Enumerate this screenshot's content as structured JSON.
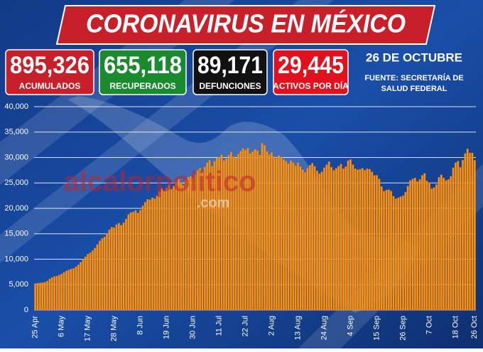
{
  "header": {
    "title": "CORONAVIRUS EN MÉXICO",
    "boxes": [
      {
        "number": "895,326",
        "label": "ACUMULADOS",
        "color": "#c8202a"
      },
      {
        "number": "655,118",
        "label": "RECUPERADOS",
        "color": "#1a8a2e"
      },
      {
        "number": "89,171",
        "label": "DEFUNCIONES",
        "color": "#111111"
      },
      {
        "number": "29,445",
        "label": "ACTIVOS POR DÍA",
        "color": "#e3101e"
      }
    ],
    "date": "26 DE OCTUBRE",
    "source": [
      "FUENTE: SECRETARÍA DE",
      "SALUD FEDERAL"
    ],
    "watermark": [
      "alcalorpolitico",
      ".com"
    ]
  },
  "chart_data": {
    "type": "bar",
    "color": "#f7941d",
    "grid": true,
    "categories": [
      "25 Apr",
      null,
      null,
      null,
      null,
      null,
      null,
      null,
      null,
      null,
      null,
      "6 May",
      null,
      null,
      null,
      null,
      null,
      null,
      null,
      null,
      null,
      null,
      "17 May",
      null,
      null,
      null,
      null,
      null,
      null,
      null,
      null,
      null,
      null,
      "28 May",
      null,
      null,
      null,
      null,
      null,
      null,
      null,
      null,
      null,
      null,
      "8 Jun",
      null,
      null,
      null,
      null,
      null,
      null,
      null,
      null,
      null,
      null,
      "19 Jun",
      null,
      null,
      null,
      null,
      null,
      null,
      null,
      null,
      null,
      null,
      "30 Jun",
      null,
      null,
      null,
      null,
      null,
      null,
      null,
      null,
      null,
      null,
      "11 Jul",
      null,
      null,
      null,
      null,
      null,
      null,
      null,
      null,
      null,
      null,
      "22 Jul",
      null,
      null,
      null,
      null,
      null,
      null,
      null,
      null,
      null,
      null,
      "2 Aug",
      null,
      null,
      null,
      null,
      null,
      null,
      null,
      null,
      null,
      null,
      "13 Aug",
      null,
      null,
      null,
      null,
      null,
      null,
      null,
      null,
      null,
      null,
      "24 Aug",
      null,
      null,
      null,
      null,
      null,
      null,
      null,
      null,
      null,
      null,
      "4 Sep",
      null,
      null,
      null,
      null,
      null,
      null,
      null,
      null,
      null,
      null,
      "15 Sep",
      null,
      null,
      null,
      null,
      null,
      null,
      null,
      null,
      null,
      null,
      "26 Sep",
      null,
      null,
      null,
      null,
      null,
      null,
      null,
      null,
      null,
      null,
      "7 Oct",
      null,
      null,
      null,
      null,
      null,
      null,
      null,
      null,
      null,
      null,
      "18 Oct",
      null,
      null,
      null,
      null,
      null,
      null,
      null,
      "26 Oct"
    ],
    "values": [
      5200,
      5300,
      5350,
      5400,
      5500,
      5700,
      6100,
      6400,
      6600,
      6700,
      6900,
      7100,
      7400,
      7700,
      7900,
      8100,
      8200,
      8500,
      8900,
      9400,
      10000,
      10500,
      11000,
      11300,
      11700,
      12200,
      12900,
      13600,
      14100,
      14400,
      15100,
      15800,
      16300,
      16200,
      16800,
      17100,
      16700,
      17200,
      17900,
      18800,
      19200,
      19300,
      19600,
      19100,
      19700,
      20500,
      21200,
      21800,
      21700,
      22100,
      21900,
      22500,
      23300,
      23900,
      23400,
      24000,
      24600,
      23800,
      24400,
      25200,
      25800,
      25100,
      24500,
      25600,
      26100,
      26300,
      26000,
      26700,
      27500,
      27900,
      27300,
      28200,
      29000,
      29500,
      28300,
      29300,
      29900,
      30100,
      30600,
      29400,
      29800,
      30500,
      31100,
      30200,
      29900,
      30700,
      31300,
      31800,
      31500,
      31900,
      30800,
      31200,
      31600,
      31400,
      30500,
      32800,
      32400,
      31200,
      30600,
      31000,
      30200,
      29800,
      30400,
      30100,
      29600,
      29300,
      28800,
      29400,
      29000,
      28400,
      29000,
      28200,
      27600,
      27100,
      27900,
      28500,
      28900,
      28300,
      27400,
      26800,
      27200,
      28000,
      28600,
      29200,
      28100,
      27500,
      27900,
      28300,
      28700,
      27800,
      28200,
      29400,
      29600,
      28600,
      27800,
      27600,
      27700,
      27900,
      27500,
      27800,
      27700,
      27200,
      26500,
      26500,
      25800,
      24300,
      23400,
      23600,
      23700,
      23400,
      22400,
      21900,
      22100,
      22300,
      22500,
      23200,
      24400,
      25500,
      25800,
      26000,
      25300,
      25700,
      26500,
      26900,
      25400,
      25000,
      23900,
      24100,
      24700,
      26100,
      26600,
      26000,
      25500,
      25700,
      26300,
      28000,
      29000,
      29300,
      28100,
      29500,
      30800,
      31700,
      30900,
      30900,
      29445
    ],
    "ylim": [
      0,
      40000
    ],
    "yticks": [
      0,
      {
        "value": 5000,
        "label": "5,000"
      },
      {
        "value": 10000,
        "label": "10,000"
      },
      {
        "value": 15000,
        "label": "15,000"
      },
      {
        "value": 20000,
        "label": "20,000"
      },
      {
        "value": 25000,
        "label": "25,000"
      },
      {
        "value": 30000,
        "label": "30,000"
      },
      {
        "value": 35000,
        "label": "35,000"
      },
      {
        "value": 40000,
        "label": "40,000"
      }
    ]
  }
}
